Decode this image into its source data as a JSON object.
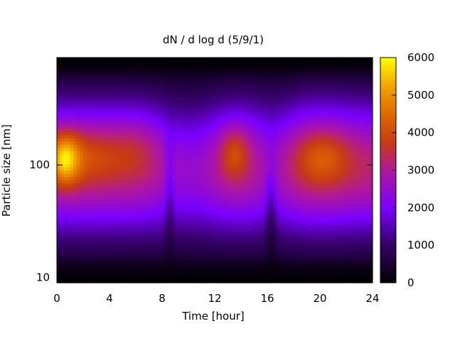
{
  "chart_data": {
    "type": "heatmap",
    "title": "dN / d log d (5/9/1)",
    "xlabel": "Time [hour]",
    "ylabel": "Particle size [nm]",
    "xlim": [
      0,
      24
    ],
    "x_ticks": [
      "0",
      "4",
      "8",
      "12",
      "16",
      "20",
      "24"
    ],
    "y_scale": "log",
    "ylim": [
      9,
      900
    ],
    "y_ticks": [
      "10",
      "100"
    ],
    "colorbar": {
      "range": [
        0,
        6000
      ],
      "ticks": [
        "0",
        "1000",
        "2000",
        "3000",
        "4000",
        "5000",
        "6000"
      ],
      "colormap": "black-purple-red-yellow"
    },
    "grid": false,
    "legend": "none",
    "features": [
      {
        "time_range": [
          0,
          5
        ],
        "size_range": [
          60,
          250
        ],
        "peak_value": 5500,
        "peak_time": 0.5,
        "peak_size": 115
      },
      {
        "time_range": [
          5,
          8
        ],
        "size_range": [
          70,
          220
        ],
        "peak_value": 3200
      },
      {
        "time_range": [
          12.5,
          14.5
        ],
        "size_range": [
          70,
          230
        ],
        "peak_value": 3600
      },
      {
        "time_range": [
          18,
          22
        ],
        "size_range": [
          70,
          220
        ],
        "peak_value": 3500
      }
    ]
  }
}
